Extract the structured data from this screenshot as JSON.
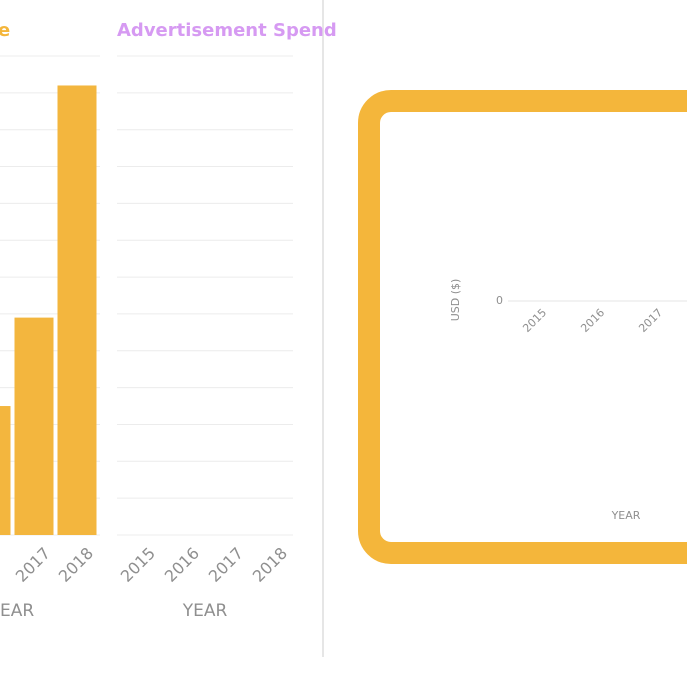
{
  "chart_data": [
    {
      "type": "bar",
      "title": "e",
      "x_label": "EAR",
      "categories": [
        null,
        "2017",
        "2018"
      ],
      "values": [
        3.5,
        5.9,
        12.2
      ],
      "color": "#f3b63e",
      "ylim": [
        0,
        13
      ],
      "grid": true
    },
    {
      "type": "bar",
      "title": "Advertisement Spend",
      "x_label": "YEAR",
      "categories": [
        "2015",
        "2016",
        "2017",
        "2018"
      ],
      "color": "#f3b63e",
      "ylim": [
        0,
        13
      ],
      "grid": true
    },
    {
      "type": "bar",
      "x_label": "YEAR",
      "y_label": "USD ($)",
      "categories": [
        "2015",
        "2016",
        "2017"
      ],
      "yticks": [
        0
      ],
      "ylim": [
        0,
        1
      ]
    }
  ]
}
